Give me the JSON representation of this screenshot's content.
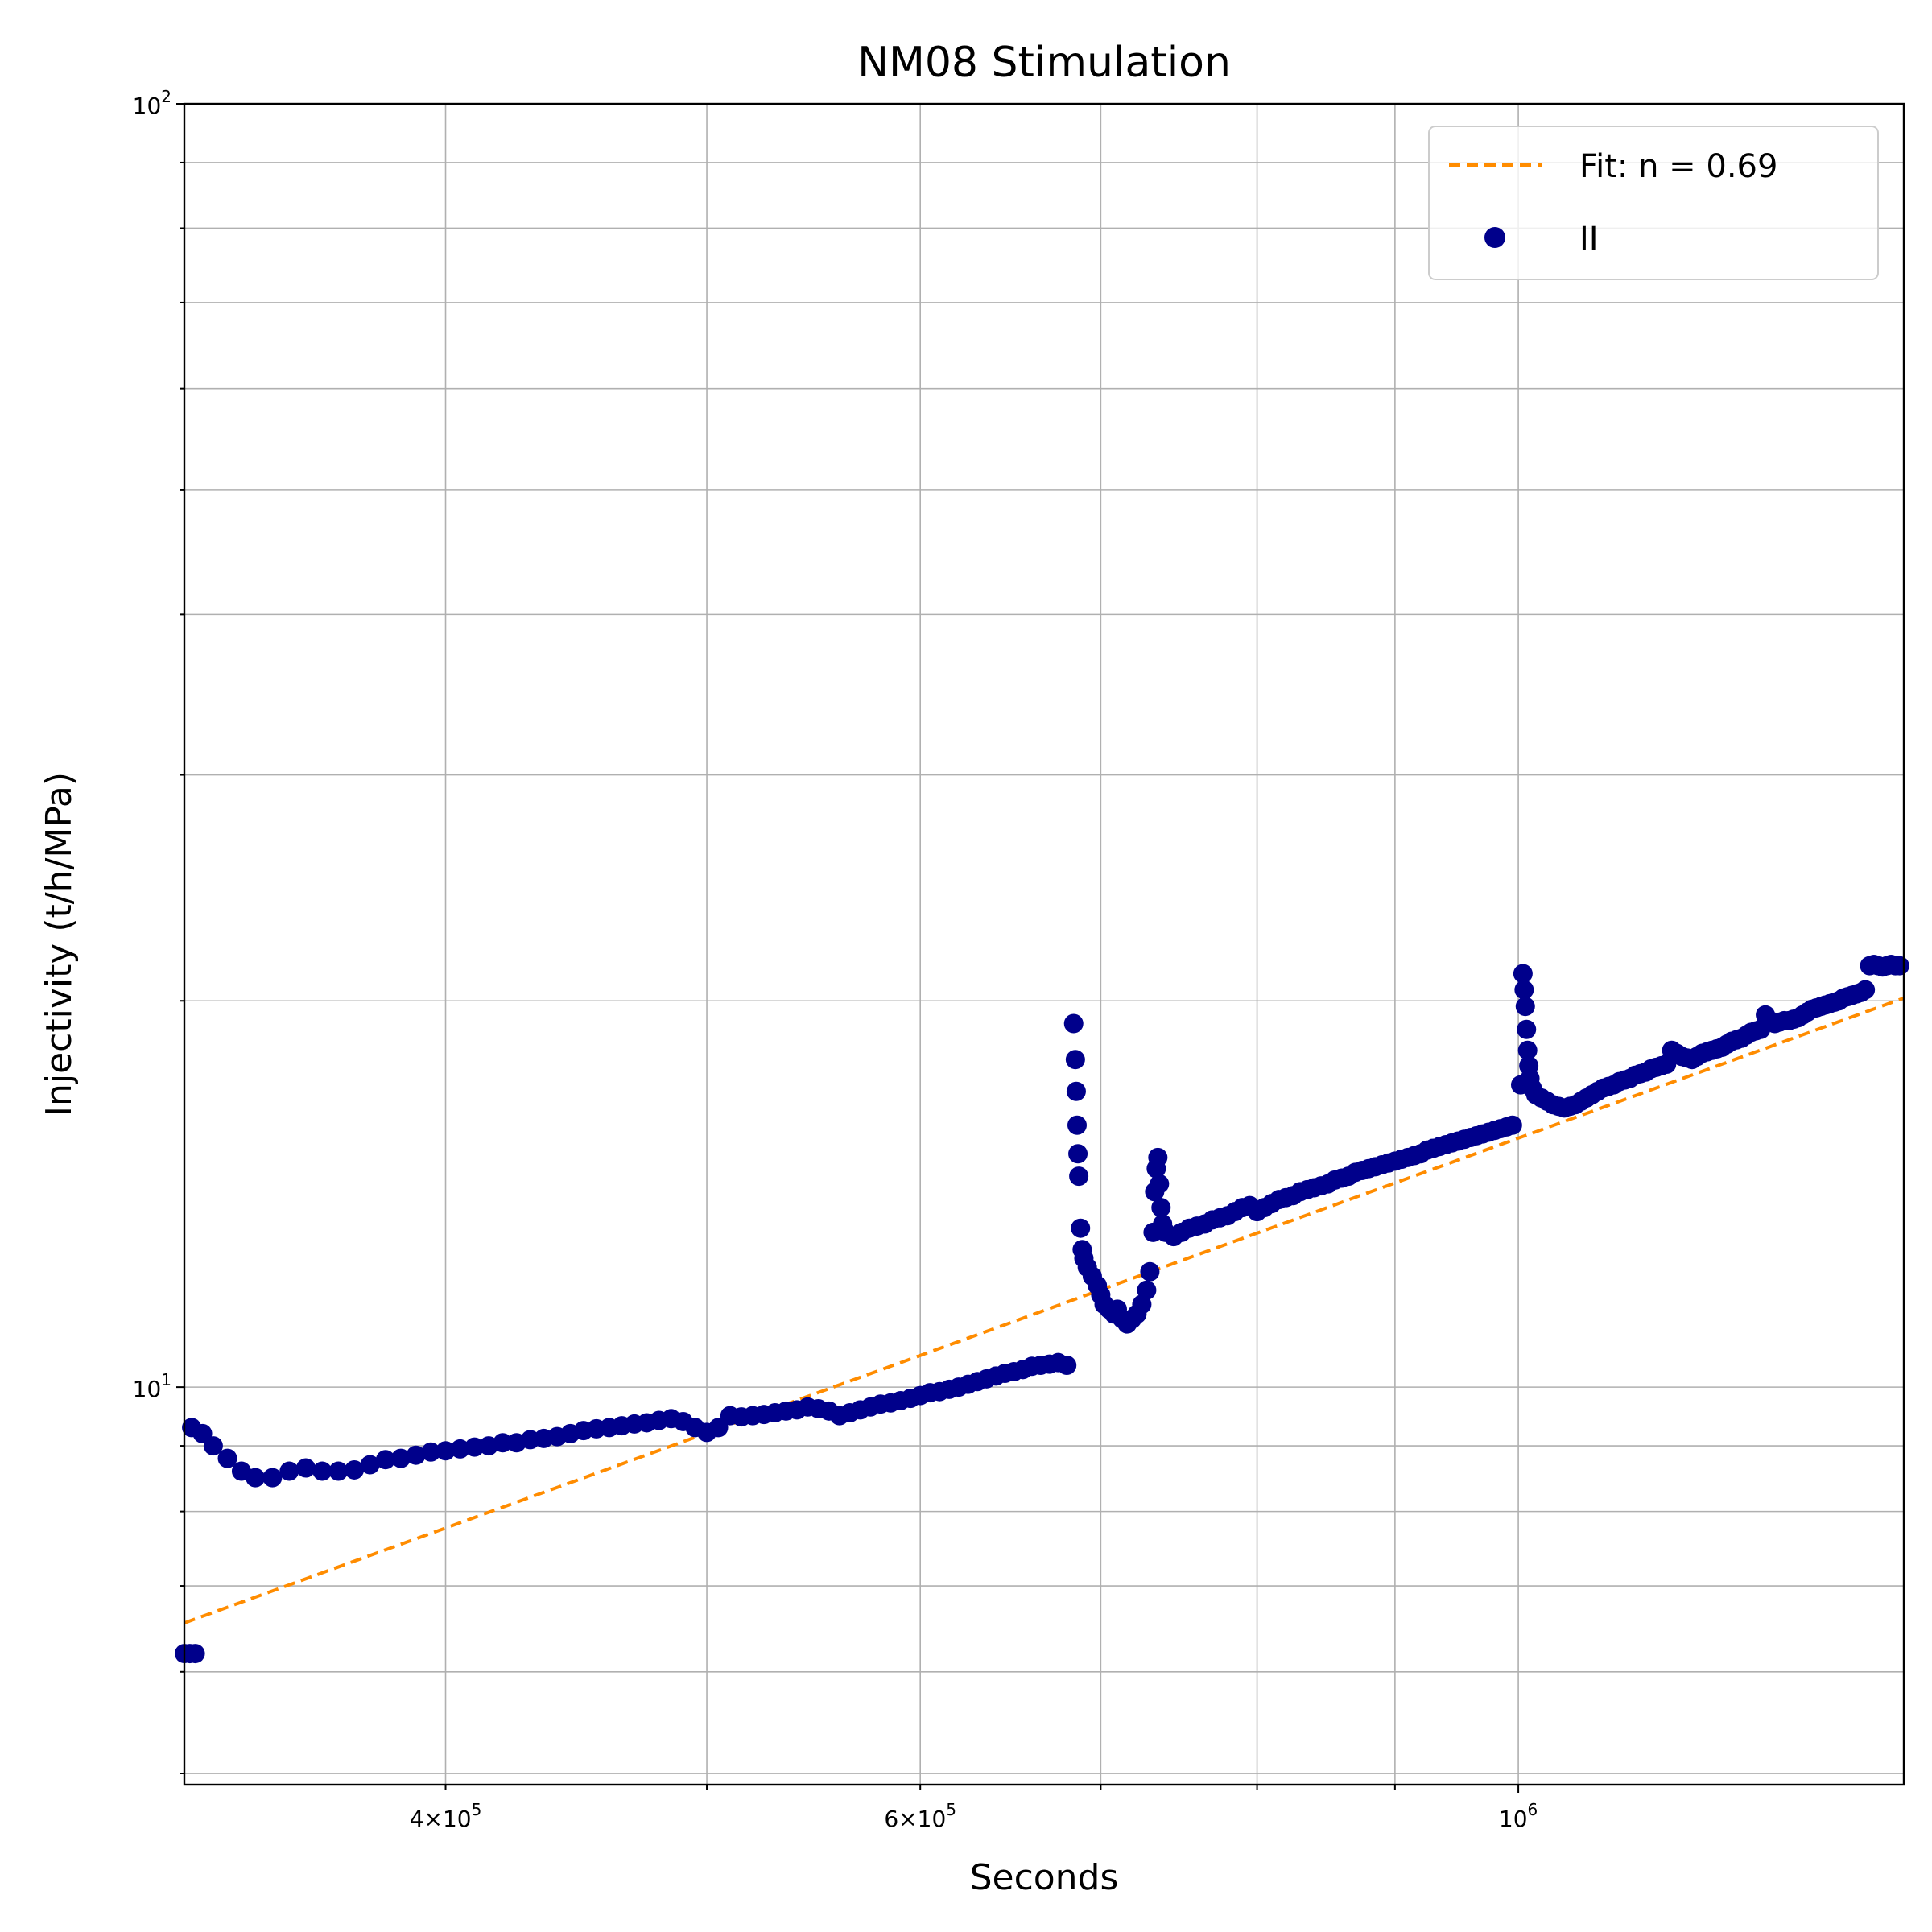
{
  "chart_data": {
    "type": "scatter",
    "title": "NM08 Stimulation",
    "xlabel": "Seconds",
    "ylabel": "Injectivity (t/h/MPa)",
    "xscale": "log",
    "yscale": "log",
    "xlim": [
      320000,
      1390000
    ],
    "ylim": [
      4.9,
      100
    ],
    "grid": true,
    "legend_position": "top-right",
    "x_tick_labels": [
      {
        "value": 400000,
        "mantissa": "4",
        "exponent": "5"
      },
      {
        "value": 600000,
        "mantissa": "6",
        "exponent": "5"
      },
      {
        "value": 1000000,
        "mantissa": "",
        "exponent": "6"
      }
    ],
    "y_tick_labels": [
      {
        "value": 10,
        "exponent": "1"
      },
      {
        "value": 100,
        "exponent": "2"
      }
    ],
    "series": [
      {
        "name": "Fit: n = 0.69",
        "kind": "line",
        "style": "dashed",
        "color": "#ff8c00",
        "x": [
          320000,
          1390000
        ],
        "y": [
          6.55,
          20.1
        ]
      },
      {
        "name": "II",
        "kind": "scatter",
        "color": "#00008b",
        "points": [
          [
            320000,
            6.2
          ],
          [
            321500,
            6.2
          ],
          [
            323000,
            6.2
          ],
          [
            322000,
            9.3
          ],
          [
            325000,
            9.2
          ],
          [
            328000,
            9.0
          ],
          [
            332000,
            8.8
          ],
          [
            336000,
            8.6
          ],
          [
            340000,
            8.5
          ],
          [
            345000,
            8.5
          ],
          [
            350000,
            8.6
          ],
          [
            355000,
            8.65
          ],
          [
            360000,
            8.6
          ],
          [
            365000,
            8.6
          ],
          [
            370000,
            8.62
          ],
          [
            375000,
            8.7
          ],
          [
            380000,
            8.78
          ],
          [
            385000,
            8.8
          ],
          [
            390000,
            8.85
          ],
          [
            395000,
            8.9
          ],
          [
            400000,
            8.92
          ],
          [
            405000,
            8.95
          ],
          [
            410000,
            8.98
          ],
          [
            415000,
            9.0
          ],
          [
            420000,
            9.05
          ],
          [
            425000,
            9.05
          ],
          [
            430000,
            9.1
          ],
          [
            435000,
            9.12
          ],
          [
            440000,
            9.15
          ],
          [
            445000,
            9.2
          ],
          [
            450000,
            9.25
          ],
          [
            455000,
            9.28
          ],
          [
            460000,
            9.3
          ],
          [
            465000,
            9.33
          ],
          [
            470000,
            9.36
          ],
          [
            475000,
            9.38
          ],
          [
            480000,
            9.42
          ],
          [
            485000,
            9.45
          ],
          [
            490000,
            9.4
          ],
          [
            495000,
            9.3
          ],
          [
            500000,
            9.22
          ],
          [
            505000,
            9.3
          ],
          [
            510000,
            9.5
          ],
          [
            515000,
            9.48
          ],
          [
            520000,
            9.5
          ],
          [
            525000,
            9.52
          ],
          [
            530000,
            9.55
          ],
          [
            535000,
            9.58
          ],
          [
            540000,
            9.6
          ],
          [
            545000,
            9.65
          ],
          [
            550000,
            9.62
          ],
          [
            555000,
            9.58
          ],
          [
            560000,
            9.5
          ],
          [
            565000,
            9.55
          ],
          [
            570000,
            9.6
          ],
          [
            575000,
            9.65
          ],
          [
            580000,
            9.7
          ],
          [
            585000,
            9.72
          ],
          [
            590000,
            9.76
          ],
          [
            595000,
            9.8
          ],
          [
            600000,
            9.85
          ],
          [
            605000,
            9.9
          ],
          [
            610000,
            9.92
          ],
          [
            615000,
            9.96
          ],
          [
            620000,
            10.0
          ],
          [
            625000,
            10.05
          ],
          [
            630000,
            10.1
          ],
          [
            635000,
            10.15
          ],
          [
            640000,
            10.2
          ],
          [
            645000,
            10.25
          ],
          [
            650000,
            10.28
          ],
          [
            655000,
            10.32
          ],
          [
            660000,
            10.38
          ],
          [
            665000,
            10.4
          ],
          [
            670000,
            10.42
          ],
          [
            675000,
            10.45
          ],
          [
            680000,
            10.4
          ],
          [
            684000,
            19.2
          ],
          [
            685000,
            18.0
          ],
          [
            685500,
            17.0
          ],
          [
            686000,
            16.0
          ],
          [
            686500,
            15.2
          ],
          [
            687000,
            14.6
          ],
          [
            688000,
            13.3
          ],
          [
            689000,
            12.8
          ],
          [
            690000,
            12.6
          ],
          [
            692000,
            12.4
          ],
          [
            695000,
            12.2
          ],
          [
            698000,
            12.0
          ],
          [
            700000,
            11.8
          ],
          [
            702000,
            11.6
          ],
          [
            705000,
            11.5
          ],
          [
            708000,
            11.4
          ],
          [
            710000,
            11.5
          ],
          [
            713000,
            11.3
          ],
          [
            716000,
            11.2
          ],
          [
            719000,
            11.3
          ],
          [
            722000,
            11.4
          ],
          [
            725000,
            11.6
          ],
          [
            728000,
            11.9
          ],
          [
            730000,
            12.3
          ],
          [
            732000,
            13.2
          ],
          [
            733000,
            14.2
          ],
          [
            734000,
            14.8
          ],
          [
            735000,
            15.1
          ],
          [
            736000,
            14.4
          ],
          [
            737000,
            13.8
          ],
          [
            738000,
            13.4
          ],
          [
            740000,
            13.2
          ],
          [
            745000,
            13.1
          ],
          [
            750000,
            13.2
          ],
          [
            755000,
            13.3
          ],
          [
            760000,
            13.35
          ],
          [
            765000,
            13.4
          ],
          [
            770000,
            13.5
          ],
          [
            775000,
            13.55
          ],
          [
            780000,
            13.6
          ],
          [
            785000,
            13.7
          ],
          [
            790000,
            13.8
          ],
          [
            795000,
            13.85
          ],
          [
            800000,
            13.7
          ],
          [
            805000,
            13.8
          ],
          [
            810000,
            13.9
          ],
          [
            815000,
            14.0
          ],
          [
            820000,
            14.05
          ],
          [
            825000,
            14.1
          ],
          [
            830000,
            14.2
          ],
          [
            835000,
            14.25
          ],
          [
            840000,
            14.3
          ],
          [
            845000,
            14.35
          ],
          [
            850000,
            14.4
          ],
          [
            855000,
            14.5
          ],
          [
            860000,
            14.55
          ],
          [
            865000,
            14.6
          ],
          [
            870000,
            14.7
          ],
          [
            875000,
            14.75
          ],
          [
            880000,
            14.8
          ],
          [
            885000,
            14.85
          ],
          [
            890000,
            14.9
          ],
          [
            895000,
            14.95
          ],
          [
            900000,
            15.0
          ],
          [
            905000,
            15.05
          ],
          [
            910000,
            15.1
          ],
          [
            915000,
            15.15
          ],
          [
            920000,
            15.2
          ],
          [
            925000,
            15.3
          ],
          [
            930000,
            15.35
          ],
          [
            935000,
            15.4
          ],
          [
            940000,
            15.45
          ],
          [
            945000,
            15.5
          ],
          [
            950000,
            15.55
          ],
          [
            955000,
            15.6
          ],
          [
            960000,
            15.65
          ],
          [
            965000,
            15.7
          ],
          [
            970000,
            15.75
          ],
          [
            975000,
            15.8
          ],
          [
            980000,
            15.85
          ],
          [
            985000,
            15.9
          ],
          [
            990000,
            15.95
          ],
          [
            995000,
            16.0
          ],
          [
            1002000,
            17.2
          ],
          [
            1004000,
            21.0
          ],
          [
            1005000,
            20.4
          ],
          [
            1006000,
            19.8
          ],
          [
            1007000,
            19.0
          ],
          [
            1008000,
            18.3
          ],
          [
            1009000,
            17.8
          ],
          [
            1010000,
            17.4
          ],
          [
            1012000,
            17.1
          ],
          [
            1015000,
            16.9
          ],
          [
            1020000,
            16.8
          ],
          [
            1025000,
            16.7
          ],
          [
            1030000,
            16.6
          ],
          [
            1035000,
            16.55
          ],
          [
            1040000,
            16.5
          ],
          [
            1045000,
            16.55
          ],
          [
            1050000,
            16.6
          ],
          [
            1055000,
            16.7
          ],
          [
            1060000,
            16.8
          ],
          [
            1065000,
            16.9
          ],
          [
            1070000,
            17.0
          ],
          [
            1075000,
            17.1
          ],
          [
            1080000,
            17.15
          ],
          [
            1085000,
            17.2
          ],
          [
            1090000,
            17.3
          ],
          [
            1095000,
            17.35
          ],
          [
            1100000,
            17.4
          ],
          [
            1105000,
            17.5
          ],
          [
            1110000,
            17.55
          ],
          [
            1115000,
            17.6
          ],
          [
            1120000,
            17.7
          ],
          [
            1125000,
            17.75
          ],
          [
            1130000,
            17.8
          ],
          [
            1135000,
            17.85
          ],
          [
            1140000,
            18.3
          ],
          [
            1145000,
            18.2
          ],
          [
            1150000,
            18.1
          ],
          [
            1155000,
            18.05
          ],
          [
            1160000,
            18.0
          ],
          [
            1165000,
            18.1
          ],
          [
            1170000,
            18.2
          ],
          [
            1175000,
            18.25
          ],
          [
            1180000,
            18.3
          ],
          [
            1185000,
            18.35
          ],
          [
            1190000,
            18.4
          ],
          [
            1195000,
            18.5
          ],
          [
            1200000,
            18.6
          ],
          [
            1205000,
            18.65
          ],
          [
            1210000,
            18.7
          ],
          [
            1215000,
            18.8
          ],
          [
            1220000,
            18.9
          ],
          [
            1225000,
            18.95
          ],
          [
            1230000,
            19.0
          ],
          [
            1235000,
            19.5
          ],
          [
            1240000,
            19.3
          ],
          [
            1245000,
            19.2
          ],
          [
            1250000,
            19.25
          ],
          [
            1255000,
            19.3
          ],
          [
            1260000,
            19.3
          ],
          [
            1265000,
            19.35
          ],
          [
            1270000,
            19.4
          ],
          [
            1275000,
            19.5
          ],
          [
            1280000,
            19.6
          ],
          [
            1285000,
            19.7
          ],
          [
            1290000,
            19.75
          ],
          [
            1295000,
            19.8
          ],
          [
            1300000,
            19.85
          ],
          [
            1305000,
            19.9
          ],
          [
            1310000,
            19.95
          ],
          [
            1315000,
            20.0
          ],
          [
            1320000,
            20.1
          ],
          [
            1325000,
            20.15
          ],
          [
            1330000,
            20.2
          ],
          [
            1335000,
            20.25
          ],
          [
            1340000,
            20.3
          ],
          [
            1345000,
            20.4
          ],
          [
            1350000,
            21.3
          ],
          [
            1355000,
            21.35
          ],
          [
            1360000,
            21.3
          ],
          [
            1365000,
            21.25
          ],
          [
            1370000,
            21.3
          ],
          [
            1375000,
            21.35
          ],
          [
            1380000,
            21.3
          ],
          [
            1385000,
            21.3
          ]
        ]
      }
    ]
  }
}
